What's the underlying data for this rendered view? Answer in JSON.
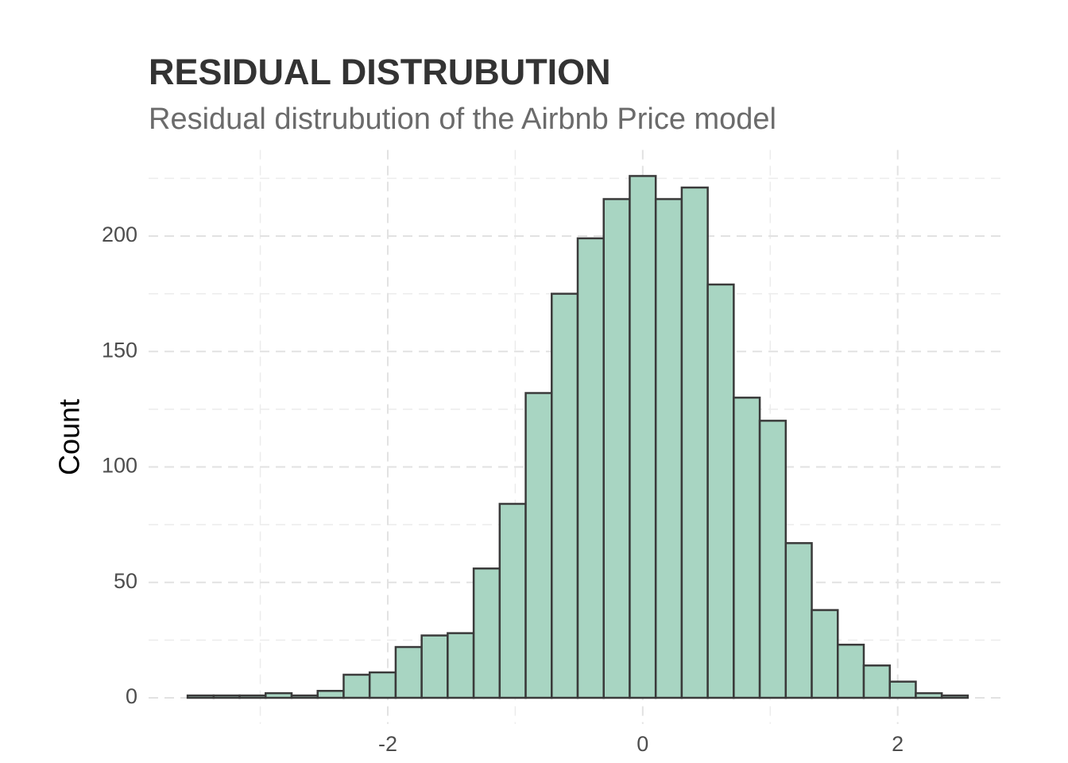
{
  "chart_data": {
    "type": "histogram",
    "title": "RESIDUAL DISTRUBUTION",
    "subtitle": "Residual distrubution of the Airbnb Price model",
    "y_label": "Count",
    "bins": [
      -3.57,
      -3.366,
      -3.162,
      -2.958,
      -2.754,
      -2.55,
      -2.346,
      -2.142,
      -1.938,
      -1.734,
      -1.53,
      -1.326,
      -1.122,
      -0.918,
      -0.714,
      -0.51,
      -0.306,
      -0.102,
      0.102,
      0.306,
      0.51,
      0.714,
      0.918,
      1.122,
      1.326,
      1.53,
      1.734,
      1.938,
      2.142,
      2.346,
      2.55
    ],
    "values": [
      1,
      1,
      1,
      2,
      1,
      3,
      10,
      11,
      22,
      27,
      28,
      56,
      84,
      132,
      175,
      199,
      216,
      226,
      216,
      221,
      179,
      130,
      120,
      67,
      38,
      23,
      14,
      7,
      2,
      1
    ],
    "color": "#a8d5c2",
    "edge_color": "#3a3a3a",
    "xlim": [
      -3.876,
      2.856
    ],
    "xticks": [
      -2,
      0,
      2
    ],
    "ylim": [
      -11.3,
      237.3
    ],
    "yticks": [
      0,
      50,
      100,
      150,
      200
    ],
    "x_minor_grid": [
      -3,
      -1,
      1
    ],
    "y_minor_grid": [
      25,
      75,
      125,
      175,
      225
    ],
    "grid": true
  }
}
